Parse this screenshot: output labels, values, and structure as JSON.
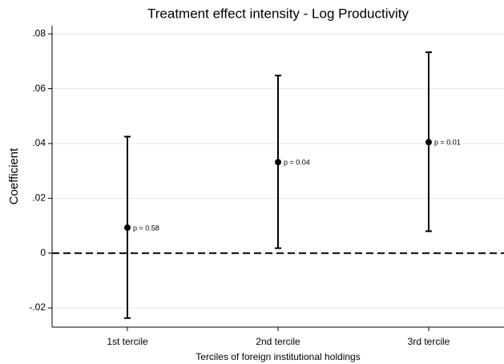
{
  "chart_data": {
    "type": "errorbar",
    "title": "Treatment effect intensity - Log Productivity",
    "x_label": "Terciles of foreign institutional holdings",
    "y_label": "Coefficient",
    "categories": [
      "1st tercile",
      "2nd tercile",
      "3rd tercile"
    ],
    "values": [
      0.0093,
      0.0332,
      0.0405
    ],
    "ci_low": [
      -0.0237,
      0.0018,
      0.008
    ],
    "ci_high": [
      0.0425,
      0.0648,
      0.0733
    ],
    "annotations": [
      "p = 0.58",
      "p = 0.04",
      "p = 0.01"
    ],
    "color": "#000000",
    "reference_line": 0,
    "ylim": [
      -0.027,
      0.083
    ],
    "yticks": [
      {
        "value": -0.02,
        "label": "-.02"
      },
      0,
      {
        "value": 0.02,
        "label": ".02"
      },
      {
        "value": 0.04,
        "label": ".04"
      },
      {
        "value": 0.06,
        "label": ".06"
      },
      {
        "value": 0.08,
        "label": ".08"
      }
    ],
    "grid": true
  }
}
